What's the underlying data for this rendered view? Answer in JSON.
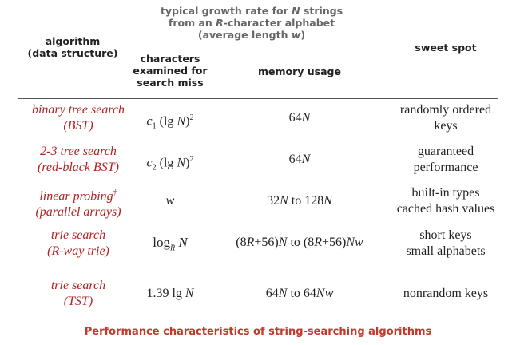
{
  "header": {
    "col_algorithm": [
      "algorithm",
      "(data structure)"
    ],
    "group_title": [
      "typical growth rate for N strings",
      "from an R-character alphabet",
      "(average length w)"
    ],
    "col_characters": [
      "characters",
      "examined for",
      "search miss"
    ],
    "col_memory": "memory usage",
    "col_sweet": "sweet spot"
  },
  "rows": [
    {
      "alg1": "binary tree search",
      "alg2": "(BST)",
      "chars": "c1 (lg N)2",
      "memory": "64N",
      "sweet1": "randomly ordered",
      "sweet2": "keys"
    },
    {
      "alg1": "2-3 tree search",
      "alg2": "(red-black BST)",
      "chars": "c2 (lg N)2",
      "memory": "64N",
      "sweet1": "guaranteed",
      "sweet2": "performance"
    },
    {
      "alg1": "linear probing†",
      "alg2": "(parallel arrays)",
      "chars": "w",
      "memory": "32N to 128N",
      "sweet1": "built-in types",
      "sweet2": "cached hash values"
    },
    {
      "alg1": "trie search",
      "alg2": "(R-way trie)",
      "chars": "logR N",
      "memory": "(8R+56)N to (8R+56)Nw",
      "sweet1": "short keys",
      "sweet2": "small alphabets"
    },
    {
      "alg1": "trie search",
      "alg2": "(TST)",
      "chars": "1.39 lg N",
      "memory": "64N to 64Nw",
      "sweet1": "nonrandom keys",
      "sweet2": ""
    }
  ],
  "caption": "Performance characteristics of string-searching algorithms"
}
